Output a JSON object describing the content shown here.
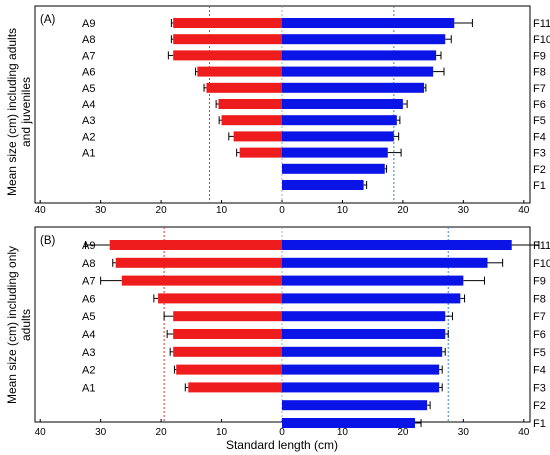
{
  "colors": {
    "adult": "#ee1c1c",
    "female": "#0a14e6",
    "axis": "#000000",
    "adult_mean_line": "#e03030",
    "female_mean_line": "#3a7fd0",
    "zero_line": "#9b9b9b"
  },
  "x_axis_label": "Standard length (cm)",
  "chart_data": [
    {
      "type": "bar",
      "orientation": "horizontal-butterfly",
      "panel_label": "(A)",
      "ylabel": "Mean size (cm) including adults and juveniles",
      "ylabel_lines": [
        "Mean size (cm) including adults",
        "and juveniles"
      ],
      "xlabel": "Standard length (cm)",
      "xlim": [
        -40,
        40
      ],
      "x_ticks": [
        -40,
        -30,
        -20,
        -10,
        0,
        10,
        20,
        30,
        40
      ],
      "x_tick_labels": [
        "40",
        "30",
        "20",
        "10",
        "0",
        "10",
        "20",
        "30",
        "40"
      ],
      "grid": false,
      "left_series": {
        "labels": [
          "A9",
          "A8",
          "A7",
          "A6",
          "A5",
          "A4",
          "A3",
          "A2",
          "A1"
        ],
        "values": [
          18,
          18,
          18,
          14,
          12.5,
          10.5,
          10,
          8,
          7
        ],
        "errors": [
          0.3,
          0.3,
          0.8,
          0.3,
          0.4,
          0.4,
          0.4,
          0.8,
          0.5
        ]
      },
      "right_series": {
        "labels": [
          "F11",
          "F10",
          "F9",
          "F8",
          "F7",
          "F6",
          "F5",
          "F4",
          "F3",
          "F2",
          "F1"
        ],
        "values": [
          28.5,
          27,
          25.5,
          25,
          23.5,
          20,
          19,
          18.5,
          17.5,
          17,
          13.5
        ],
        "errors": [
          3,
          1,
          0.8,
          1.8,
          0.3,
          0.7,
          0.5,
          0.8,
          2.2,
          0.3,
          0.5
        ]
      },
      "mean_lines": {
        "adult": -12,
        "female": 18.5
      }
    },
    {
      "type": "bar",
      "orientation": "horizontal-butterfly",
      "panel_label": "(B)",
      "ylabel": "Mean size (cm) including only adults",
      "ylabel_lines": [
        "Mean size (cm) including only",
        "adults"
      ],
      "xlabel": "Standard length (cm)",
      "xlim": [
        -40,
        40
      ],
      "x_ticks": [
        -40,
        -30,
        -20,
        -10,
        0,
        10,
        20,
        30,
        40
      ],
      "x_tick_labels": [
        "40",
        "30",
        "20",
        "10",
        "0",
        "10",
        "20",
        "30",
        "40"
      ],
      "grid": false,
      "left_series": {
        "labels": [
          "A9",
          "A8",
          "A7",
          "A6",
          "A5",
          "A4",
          "A3",
          "A2",
          "A1"
        ],
        "values": [
          28.5,
          27.5,
          26.5,
          20.5,
          18,
          18,
          18,
          17.5,
          15.5
        ],
        "errors": [
          4,
          0.5,
          3.5,
          0.7,
          1.5,
          1,
          0.5,
          0.3,
          0.5
        ]
      },
      "right_series": {
        "labels": [
          "F11",
          "F10",
          "F9",
          "F8",
          "F7",
          "F6",
          "F5",
          "F4",
          "F3",
          "F2",
          "F1"
        ],
        "values": [
          38,
          34,
          30,
          29.5,
          27,
          27,
          26.5,
          26,
          26,
          24,
          22
        ],
        "errors": [
          4.5,
          2.5,
          3.5,
          0.7,
          1.2,
          0.5,
          0.5,
          0.5,
          0.5,
          0.5,
          1
        ]
      },
      "mean_lines": {
        "adult": -19.5,
        "female": 27.5
      }
    }
  ]
}
